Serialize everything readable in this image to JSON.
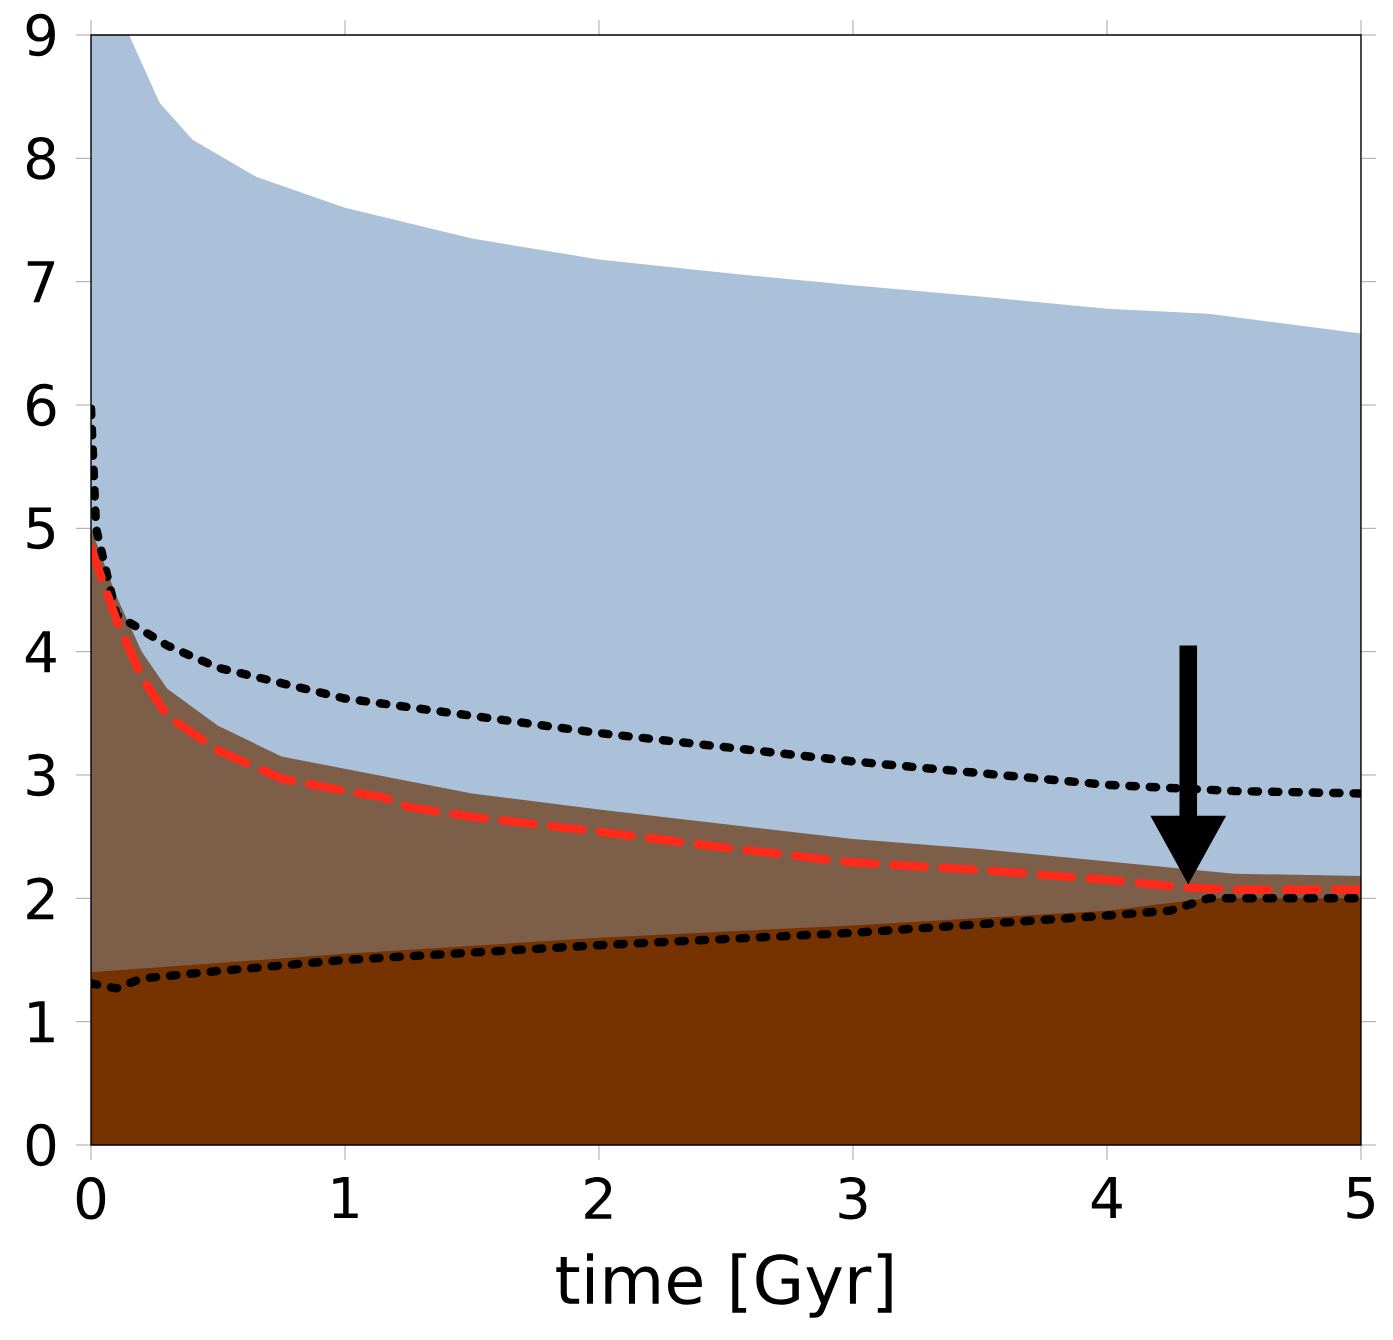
{
  "chart_data": {
    "type": "line",
    "xlabel": "time [Gyr]",
    "xlim": [
      0,
      5
    ],
    "ylim": [
      0,
      9
    ],
    "xticks": [
      0,
      1,
      2,
      3,
      4,
      5
    ],
    "yticks": [
      0,
      1,
      2,
      3,
      4,
      5,
      6,
      7,
      8,
      9
    ],
    "series": [
      {
        "type": "area",
        "color": "#abc1d9",
        "x": [
          0,
          0.15,
          0.27,
          0.4,
          0.65,
          1,
          1.5,
          2,
          2.5,
          3,
          3.5,
          4,
          4.4,
          5
        ],
        "values": [
          9,
          9,
          8.45,
          8.15,
          7.85,
          7.6,
          7.35,
          7.18,
          7.07,
          6.97,
          6.88,
          6.78,
          6.74,
          6.58
        ]
      },
      {
        "type": "area",
        "color": "#7d5e48",
        "x": [
          0,
          0.1,
          0.2,
          0.3,
          0.5,
          0.75,
          1,
          1.5,
          2,
          2.5,
          3,
          3.5,
          4,
          4.5,
          5
        ],
        "values": [
          5.0,
          4.45,
          4.0,
          3.7,
          3.4,
          3.15,
          3.05,
          2.85,
          2.72,
          2.6,
          2.48,
          2.4,
          2.3,
          2.2,
          2.18
        ]
      },
      {
        "type": "area",
        "color": "#763300",
        "x": [
          0,
          1,
          2,
          3,
          4,
          4.4,
          5
        ],
        "values": [
          1.4,
          1.55,
          1.68,
          1.78,
          1.9,
          2.0,
          2.0
        ]
      },
      {
        "line_style": "dotted",
        "color": "#000000",
        "x": [
          0,
          0.02,
          0.1,
          0.3,
          0.5,
          1,
          2,
          3,
          4,
          4.5,
          5
        ],
        "values": [
          5.97,
          5,
          4.3,
          4.05,
          3.87,
          3.62,
          3.34,
          3.11,
          2.92,
          2.87,
          2.85
        ]
      },
      {
        "line_style": "dashed",
        "color": "#ff2a1a",
        "x": [
          0,
          0.1,
          0.2,
          0.3,
          0.5,
          0.75,
          1,
          1.15,
          1.25,
          1.5,
          2,
          2.5,
          3,
          3.5,
          4,
          4.3,
          4.5,
          5
        ],
        "values": [
          4.84,
          4.26,
          3.79,
          3.48,
          3.2,
          2.97,
          2.87,
          2.82,
          2.74,
          2.66,
          2.54,
          2.41,
          2.29,
          2.23,
          2.15,
          2.09,
          2.07,
          2.07
        ]
      },
      {
        "line_style": "dotted",
        "color": "#000000",
        "x": [
          0,
          0.1,
          0.2,
          0.5,
          1,
          2,
          3,
          4,
          4.25,
          4.4,
          5
        ],
        "values": [
          1.31,
          1.27,
          1.35,
          1.41,
          1.5,
          1.62,
          1.72,
          1.86,
          1.9,
          2.0,
          2.0
        ]
      }
    ]
  }
}
